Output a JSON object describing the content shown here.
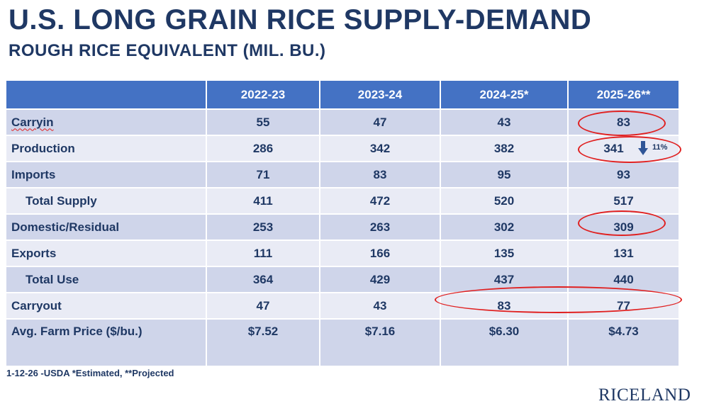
{
  "title": "U.S. LONG GRAIN RICE SUPPLY-DEMAND",
  "subtitle": "ROUGH RICE EQUIVALENT (MIL. BU.)",
  "table": {
    "headers": [
      "",
      "2022-23",
      "2023-24",
      "2024-25*",
      "2025-26**"
    ],
    "rows": [
      {
        "label": "Carryin",
        "values": [
          "55",
          "47",
          "43",
          "83"
        ]
      },
      {
        "label": "Production",
        "values": [
          "286",
          "342",
          "382",
          "341"
        ]
      },
      {
        "label": "Imports",
        "values": [
          "71",
          "83",
          "95",
          "93"
        ]
      },
      {
        "label": "Total Supply",
        "values": [
          "411",
          "472",
          "520",
          "517"
        ]
      },
      {
        "label": "Domestic/Residual",
        "values": [
          "253",
          "263",
          "302",
          "309"
        ]
      },
      {
        "label": "Exports",
        "values": [
          "111",
          "166",
          "135",
          "131"
        ]
      },
      {
        "label": "Total Use",
        "values": [
          "364",
          "429",
          "437",
          "440"
        ]
      },
      {
        "label": "Carryout",
        "values": [
          "47",
          "43",
          "83",
          "77"
        ]
      },
      {
        "label": "Avg. Farm Price ($/bu.)",
        "values": [
          "$7.52",
          "$7.16",
          "$6.30",
          "$4.73"
        ]
      }
    ]
  },
  "production_change": "11%",
  "footnote": "1-12-26 -USDA  *Estimated, **Projected",
  "logo": "RICELAND",
  "colors": {
    "header_bg": "#4472c4",
    "row_shade": "#cfd5ea",
    "row_light": "#e9ebf5",
    "text": "#1f3864",
    "highlight": "#e02020"
  }
}
